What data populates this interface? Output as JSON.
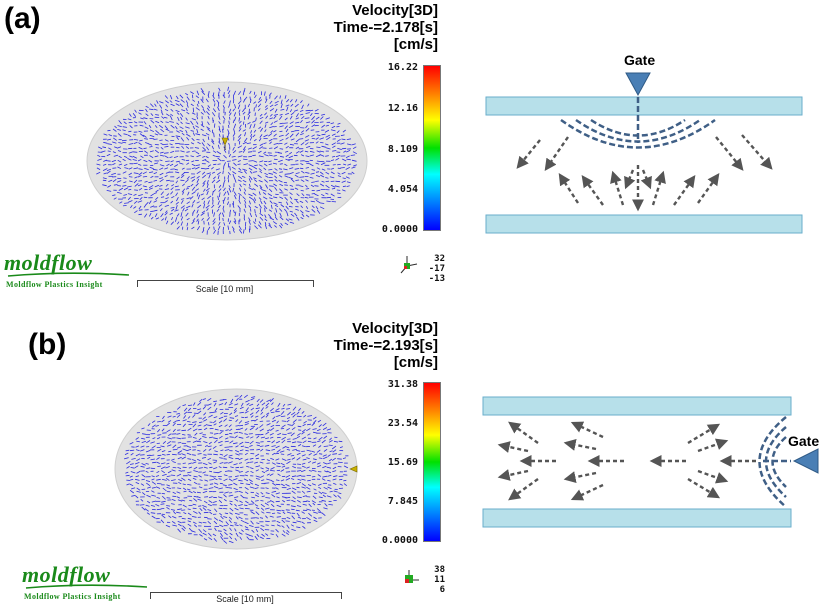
{
  "panels": [
    {
      "label": "(a)",
      "title_line1": "Velocity[3D]",
      "title_line2": "Time-=2.178[s]",
      "title_line3": "[cm/s]",
      "ticks": [
        "16.22",
        "12.16",
        "8.109",
        "4.054",
        "0.0000"
      ],
      "logo_word": "moldflow",
      "logo_sub": "Moldflow Plastics Insight",
      "scale_label": "Scale [10 mm]",
      "triad_values": [
        "32",
        "-17",
        "-13"
      ],
      "gate_label": "Gate",
      "gate_position": "top-center"
    },
    {
      "label": "(b)",
      "title_line1": "Velocity[3D]",
      "title_line2": "Time-=2.193[s]",
      "title_line3": "[cm/s]",
      "ticks": [
        "31.38",
        "23.54",
        "15.69",
        "7.845",
        "0.0000"
      ],
      "logo_word": "moldflow",
      "logo_sub": "Moldflow Plastics Insight",
      "scale_label": "Scale [10 mm]",
      "triad_values": [
        "38",
        "11",
        "6"
      ],
      "gate_label": "Gate",
      "gate_position": "right-side"
    }
  ],
  "colors": {
    "vector": "#2a2ae0",
    "disc": "#e2e2e2",
    "plate_fill": "#b7e0ea",
    "plate_stroke": "#6aaecb",
    "arrow": "#555555",
    "front": "#3f5f86",
    "gate_fill": "#4a7fb5",
    "logo": "#1a8a1a"
  }
}
